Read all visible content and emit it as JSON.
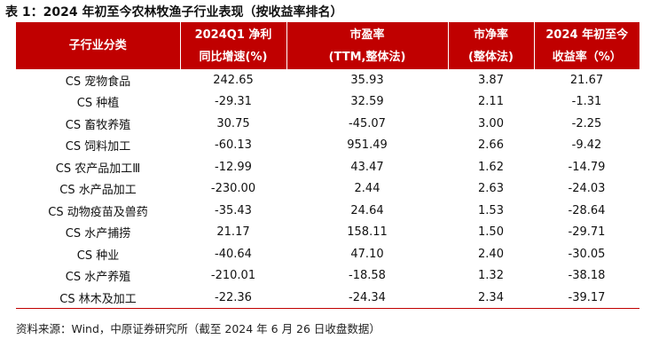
{
  "caption": "表 1：2024 年初至今农林牧渔子行业表现（按收益率排名）",
  "table": {
    "header_color": "#c00000",
    "headers": [
      {
        "line1": "子行业分类",
        "line2": ""
      },
      {
        "line1": "2024Q1 净利",
        "line2": "同比增速(%)"
      },
      {
        "line1": "市盈率",
        "line2": "(TTM,整体法)"
      },
      {
        "line1": "市净率",
        "line2": "(整体法)"
      },
      {
        "line1": "2024 年初至今",
        "line2": "收益率（%）"
      }
    ],
    "rows": [
      [
        "CS 宠物食品",
        "242.65",
        "35.93",
        "3.87",
        "21.67"
      ],
      [
        "CS 种植",
        "-29.31",
        "32.59",
        "2.11",
        "-1.31"
      ],
      [
        "CS 畜牧养殖",
        "30.75",
        "-45.07",
        "3.00",
        "-2.25"
      ],
      [
        "CS 饲料加工",
        "-60.13",
        "951.49",
        "2.66",
        "-9.42"
      ],
      [
        "CS 农产品加工Ⅲ",
        "-12.99",
        "43.47",
        "1.62",
        "-14.79"
      ],
      [
        "CS 水产品加工",
        "-230.00",
        "2.44",
        "2.63",
        "-24.03"
      ],
      [
        "CS 动物疫苗及兽药",
        "-35.43",
        "24.64",
        "1.53",
        "-28.64"
      ],
      [
        "CS 水产捕捞",
        "21.17",
        "158.11",
        "1.50",
        "-29.71"
      ],
      [
        "CS 种业",
        "-40.64",
        "47.10",
        "2.40",
        "-30.05"
      ],
      [
        "CS 水产养殖",
        "-210.01",
        "-18.58",
        "1.32",
        "-38.18"
      ],
      [
        "CS 林木及加工",
        "-22.36",
        "-24.34",
        "2.34",
        "-39.17"
      ]
    ]
  },
  "source": "资料来源：Wind，中原证券研究所（截至 2024 年 6 月 26 日收盘数据）"
}
